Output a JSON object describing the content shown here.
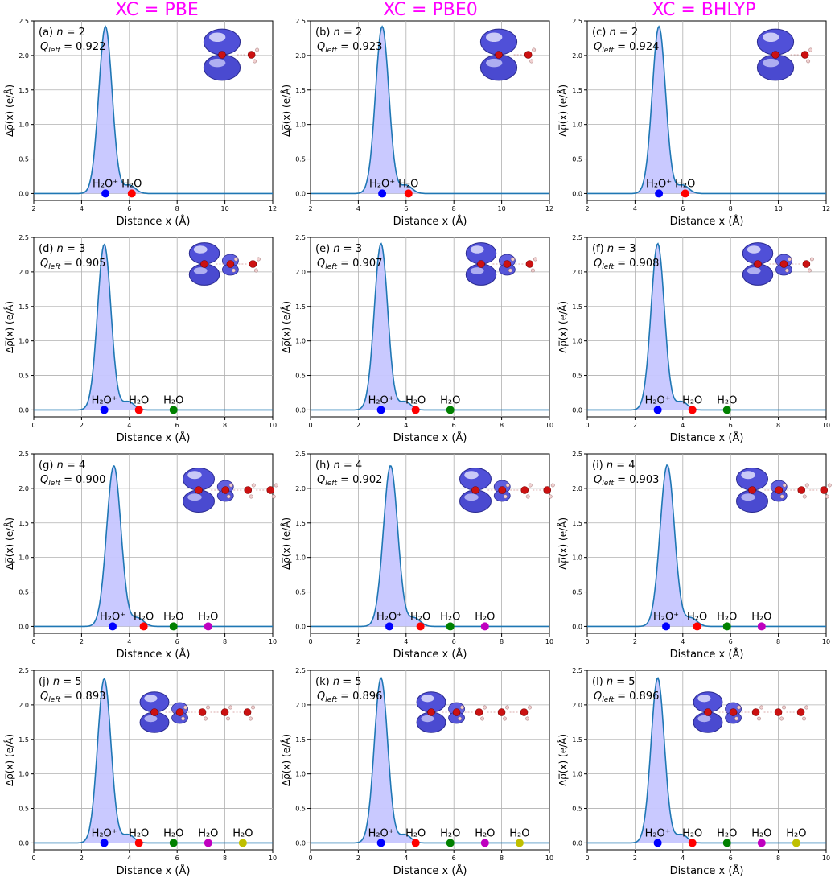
{
  "column_titles": [
    "XC = PBE",
    "XC = PBE0",
    "XC = BHLYP"
  ],
  "colors": {
    "curve": "#1f77b4",
    "fill": "#c6c6ff",
    "title": "#ff00ff",
    "markers": [
      "#0000ff",
      "#ff0000",
      "#008000",
      "#bf00bf",
      "#bfbf00"
    ]
  },
  "chart_data": [
    {
      "type": "area",
      "panel": "(a)",
      "n": "2",
      "q": "0.922",
      "xlim": [
        2,
        12
      ],
      "xticks": [
        2,
        4,
        6,
        8,
        10,
        12
      ],
      "ylim": [
        -0.1,
        2.5
      ],
      "yticks": [
        "0.0",
        "0.5",
        "1.0",
        "1.5",
        "2.0",
        "2.5"
      ],
      "xlabel": "Distance x (Å)",
      "ylabel": "Δρ̅(x) (e/Å)",
      "grid": true,
      "peak_center": 5.0,
      "peak_height": 2.42,
      "peak_width": 0.28,
      "molecules": [
        {
          "x": 5.0,
          "label": "H₂O⁺",
          "color": "#0000ff"
        },
        {
          "x": 6.1,
          "label": "H₂O",
          "color": "#ff0000"
        }
      ]
    },
    {
      "type": "area",
      "panel": "(b)",
      "n": "2",
      "q": "0.923",
      "xlim": [
        2,
        12
      ],
      "xticks": [
        2,
        4,
        6,
        8,
        10,
        12
      ],
      "ylim": [
        -0.1,
        2.5
      ],
      "yticks": [
        "0.0",
        "0.5",
        "1.0",
        "1.5",
        "2.0",
        "2.5"
      ],
      "xlabel": "Distance x (Å)",
      "ylabel": "Δρ̅(x) (e/Å)",
      "grid": true,
      "peak_center": 5.0,
      "peak_height": 2.42,
      "peak_width": 0.28,
      "molecules": [
        {
          "x": 5.0,
          "label": "H₂O⁺",
          "color": "#0000ff"
        },
        {
          "x": 6.1,
          "label": "H₂O",
          "color": "#ff0000"
        }
      ]
    },
    {
      "type": "area",
      "panel": "(c)",
      "n": "2",
      "q": "0.924",
      "xlim": [
        2,
        12
      ],
      "xticks": [
        2,
        4,
        6,
        8,
        10,
        12
      ],
      "ylim": [
        -0.1,
        2.5
      ],
      "yticks": [
        "0.0",
        "0.5",
        "1.0",
        "1.5",
        "2.0",
        "2.5"
      ],
      "xlabel": "Distance x (Å)",
      "ylabel": "Δρ̅(x) (e/Å)",
      "grid": true,
      "peak_center": 5.0,
      "peak_height": 2.42,
      "peak_width": 0.28,
      "molecules": [
        {
          "x": 5.0,
          "label": "H₂O⁺",
          "color": "#0000ff"
        },
        {
          "x": 6.1,
          "label": "H₂O",
          "color": "#ff0000"
        }
      ]
    },
    {
      "type": "area",
      "panel": "(d)",
      "n": "3",
      "q": "0.905",
      "xlim": [
        0,
        10
      ],
      "xticks": [
        0,
        2,
        4,
        6,
        8,
        10
      ],
      "ylim": [
        -0.1,
        2.5
      ],
      "yticks": [
        "0.0",
        "0.5",
        "1.0",
        "1.5",
        "2.0",
        "2.5"
      ],
      "xlabel": "Distance x (Å)",
      "ylabel": "Δρ̅(x) (e/Å)",
      "grid": true,
      "peak_center": 2.95,
      "peak_height": 2.4,
      "peak_width": 0.28,
      "molecules": [
        {
          "x": 2.95,
          "label": "H₂O⁺",
          "color": "#0000ff"
        },
        {
          "x": 4.4,
          "label": "H₂O",
          "color": "#ff0000"
        },
        {
          "x": 5.85,
          "label": "H₂O",
          "color": "#008000"
        }
      ]
    },
    {
      "type": "area",
      "panel": "(e)",
      "n": "3",
      "q": "0.907",
      "xlim": [
        0,
        10
      ],
      "xticks": [
        0,
        2,
        4,
        6,
        8,
        10
      ],
      "ylim": [
        -0.1,
        2.5
      ],
      "yticks": [
        "0.0",
        "0.5",
        "1.0",
        "1.5",
        "2.0",
        "2.5"
      ],
      "xlabel": "Distance x (Å)",
      "ylabel": "Δρ̅(x) (e/Å)",
      "grid": true,
      "peak_center": 2.95,
      "peak_height": 2.41,
      "peak_width": 0.28,
      "molecules": [
        {
          "x": 2.95,
          "label": "H₂O⁺",
          "color": "#0000ff"
        },
        {
          "x": 4.4,
          "label": "H₂O",
          "color": "#ff0000"
        },
        {
          "x": 5.85,
          "label": "H₂O",
          "color": "#008000"
        }
      ]
    },
    {
      "type": "area",
      "panel": "(f)",
      "n": "3",
      "q": "0.908",
      "xlim": [
        0,
        10
      ],
      "xticks": [
        0,
        2,
        4,
        6,
        8,
        10
      ],
      "ylim": [
        -0.1,
        2.5
      ],
      "yticks": [
        "0.0",
        "0.5",
        "1.0",
        "1.5",
        "2.0",
        "2.5"
      ],
      "xlabel": "Distance x (Å)",
      "ylabel": "Δρ̅(x) (e/Å)",
      "grid": true,
      "peak_center": 2.95,
      "peak_height": 2.41,
      "peak_width": 0.28,
      "molecules": [
        {
          "x": 2.95,
          "label": "H₂O⁺",
          "color": "#0000ff"
        },
        {
          "x": 4.4,
          "label": "H₂O",
          "color": "#ff0000"
        },
        {
          "x": 5.85,
          "label": "H₂O",
          "color": "#008000"
        }
      ]
    },
    {
      "type": "area",
      "panel": "(g)",
      "n": "4",
      "q": "0.900",
      "xlim": [
        0,
        10
      ],
      "xticks": [
        0,
        2,
        4,
        6,
        8,
        10
      ],
      "ylim": [
        -0.1,
        2.5
      ],
      "yticks": [
        "0.0",
        "0.5",
        "1.0",
        "1.5",
        "2.0",
        "2.5"
      ],
      "xlabel": "Distance x (Å)",
      "ylabel": "Δρ̅(x) (e/Å)",
      "grid": true,
      "peak_center": 3.35,
      "peak_height": 2.33,
      "peak_width": 0.3,
      "molecules": [
        {
          "x": 3.3,
          "label": "H₂O⁺",
          "color": "#0000ff"
        },
        {
          "x": 4.6,
          "label": "H₂O",
          "color": "#ff0000"
        },
        {
          "x": 5.85,
          "label": "H₂O",
          "color": "#008000"
        },
        {
          "x": 7.3,
          "label": "H₂O",
          "color": "#bf00bf"
        }
      ]
    },
    {
      "type": "area",
      "panel": "(h)",
      "n": "4",
      "q": "0.902",
      "xlim": [
        0,
        10
      ],
      "xticks": [
        0,
        2,
        4,
        6,
        8,
        10
      ],
      "ylim": [
        -0.1,
        2.5
      ],
      "yticks": [
        "0.0",
        "0.5",
        "1.0",
        "1.5",
        "2.0",
        "2.5"
      ],
      "xlabel": "Distance x (Å)",
      "ylabel": "Δρ̅(x) (e/Å)",
      "grid": true,
      "peak_center": 3.35,
      "peak_height": 2.33,
      "peak_width": 0.3,
      "molecules": [
        {
          "x": 3.3,
          "label": "H₂O⁺",
          "color": "#0000ff"
        },
        {
          "x": 4.6,
          "label": "H₂O",
          "color": "#ff0000"
        },
        {
          "x": 5.85,
          "label": "H₂O",
          "color": "#008000"
        },
        {
          "x": 7.3,
          "label": "H₂O",
          "color": "#bf00bf"
        }
      ]
    },
    {
      "type": "area",
      "panel": "(i)",
      "n": "4",
      "q": "0.903",
      "xlim": [
        0,
        10
      ],
      "xticks": [
        0,
        2,
        4,
        6,
        8,
        10
      ],
      "ylim": [
        -0.1,
        2.5
      ],
      "yticks": [
        "0.0",
        "0.5",
        "1.0",
        "1.5",
        "2.0",
        "2.5"
      ],
      "xlabel": "Distance x (Å)",
      "ylabel": "Δρ̅(x) (e/Å)",
      "grid": true,
      "peak_center": 3.35,
      "peak_height": 2.34,
      "peak_width": 0.3,
      "molecules": [
        {
          "x": 3.3,
          "label": "H₂O⁺",
          "color": "#0000ff"
        },
        {
          "x": 4.6,
          "label": "H₂O",
          "color": "#ff0000"
        },
        {
          "x": 5.85,
          "label": "H₂O",
          "color": "#008000"
        },
        {
          "x": 7.3,
          "label": "H₂O",
          "color": "#bf00bf"
        }
      ]
    },
    {
      "type": "area",
      "panel": "(j)",
      "n": "5",
      "q": "0.893",
      "xlim": [
        0,
        10
      ],
      "xticks": [
        0,
        2,
        4,
        6,
        8,
        10
      ],
      "ylim": [
        -0.1,
        2.5
      ],
      "yticks": [
        "0.0",
        "0.5",
        "1.0",
        "1.5",
        "2.0",
        "2.5"
      ],
      "xlabel": "Distance x (Å)",
      "ylabel": "Δρ̅(x) (e/Å)",
      "grid": true,
      "peak_center": 2.95,
      "peak_height": 2.38,
      "peak_width": 0.28,
      "molecules": [
        {
          "x": 2.95,
          "label": "H₂O⁺",
          "color": "#0000ff"
        },
        {
          "x": 4.4,
          "label": "H₂O",
          "color": "#ff0000"
        },
        {
          "x": 5.85,
          "label": "H₂O",
          "color": "#008000"
        },
        {
          "x": 7.3,
          "label": "H₂O",
          "color": "#bf00bf"
        },
        {
          "x": 8.75,
          "label": "H₂O",
          "color": "#bfbf00"
        }
      ]
    },
    {
      "type": "area",
      "panel": "(k)",
      "n": "5",
      "q": "0.896",
      "xlim": [
        0,
        10
      ],
      "xticks": [
        0,
        2,
        4,
        6,
        8,
        10
      ],
      "ylim": [
        -0.1,
        2.5
      ],
      "yticks": [
        "0.0",
        "0.5",
        "1.0",
        "1.5",
        "2.0",
        "2.5"
      ],
      "xlabel": "Distance x (Å)",
      "ylabel": "Δρ̅(x) (e/Å)",
      "grid": true,
      "peak_center": 2.95,
      "peak_height": 2.39,
      "peak_width": 0.28,
      "molecules": [
        {
          "x": 2.95,
          "label": "H₂O⁺",
          "color": "#0000ff"
        },
        {
          "x": 4.4,
          "label": "H₂O",
          "color": "#ff0000"
        },
        {
          "x": 5.85,
          "label": "H₂O",
          "color": "#008000"
        },
        {
          "x": 7.3,
          "label": "H₂O",
          "color": "#bf00bf"
        },
        {
          "x": 8.75,
          "label": "H₂O",
          "color": "#bfbf00"
        }
      ]
    },
    {
      "type": "area",
      "panel": "(l)",
      "n": "5",
      "q": "0.896",
      "xlim": [
        0,
        10
      ],
      "xticks": [
        0,
        2,
        4,
        6,
        8,
        10
      ],
      "ylim": [
        -0.1,
        2.5
      ],
      "yticks": [
        "0.0",
        "0.5",
        "1.0",
        "1.5",
        "2.0",
        "2.5"
      ],
      "xlabel": "Distance x (Å)",
      "ylabel": "Δρ̅(x) (e/Å)",
      "grid": true,
      "peak_center": 2.95,
      "peak_height": 2.39,
      "peak_width": 0.28,
      "molecules": [
        {
          "x": 2.95,
          "label": "H₂O⁺",
          "color": "#0000ff"
        },
        {
          "x": 4.4,
          "label": "H₂O",
          "color": "#ff0000"
        },
        {
          "x": 5.85,
          "label": "H₂O",
          "color": "#008000"
        },
        {
          "x": 7.3,
          "label": "H₂O",
          "color": "#bf00bf"
        },
        {
          "x": 8.75,
          "label": "H₂O",
          "color": "#bfbf00"
        }
      ]
    }
  ]
}
